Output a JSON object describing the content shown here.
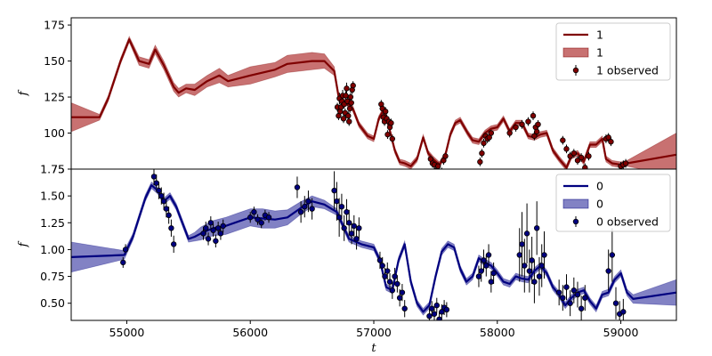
{
  "chart_data": [
    {
      "type": "line",
      "ylabel": "f",
      "xlabel": "",
      "xlim": [
        54550,
        59450
      ],
      "ylim": [
        75,
        180
      ],
      "yticks": [
        75,
        100,
        125,
        150,
        175
      ],
      "line_color": "#7f0000",
      "band_color": "#b03535",
      "legend": {
        "placement": "top-right",
        "entries": [
          "1",
          "1",
          "1 observed"
        ]
      },
      "model": {
        "x": [
          54550,
          54780,
          54850,
          54950,
          55020,
          55100,
          55180,
          55230,
          55300,
          55380,
          55420,
          55480,
          55550,
          55650,
          55750,
          55820,
          56000,
          56200,
          56300,
          56500,
          56600,
          56680,
          56720,
          56780,
          56830,
          56880,
          56950,
          57000,
          57040,
          57080,
          57120,
          57170,
          57210,
          57250,
          57300,
          57350,
          57400,
          57440,
          57480,
          57530,
          57580,
          57620,
          57660,
          57700,
          57760,
          57800,
          57850,
          57900,
          57950,
          58000,
          58050,
          58100,
          58150,
          58200,
          58250,
          58300,
          58350,
          58400,
          58450,
          58500,
          58530,
          58560,
          58600,
          58650,
          58700,
          58750,
          58800,
          58850,
          58880,
          58930,
          59000,
          59050,
          59450
        ],
        "y": [
          111,
          111,
          124,
          150,
          165,
          150,
          148,
          158,
          147,
          132,
          128,
          131,
          130,
          136,
          140,
          136,
          140,
          144,
          148,
          150,
          150,
          143,
          123,
          121,
          117,
          106,
          98,
          96,
          110,
          116,
          105,
          88,
          80,
          79,
          77,
          82,
          97,
          86,
          82,
          78,
          85,
          99,
          107,
          109,
          100,
          95,
          94,
          100,
          103,
          104,
          110,
          101,
          107,
          107,
          98,
          97,
          99,
          100,
          88,
          82,
          79,
          76,
          84,
          86,
          80,
          92,
          92,
          96,
          82,
          79,
          78,
          79,
          85
        ],
        "band": [
          10,
          2,
          2,
          2,
          2,
          3,
          3,
          3,
          3,
          3,
          3,
          3,
          4,
          4,
          5,
          4,
          6,
          5,
          6,
          6,
          5,
          3,
          2,
          2,
          2,
          2,
          2,
          2,
          2,
          2,
          2,
          2,
          2,
          2,
          2,
          2,
          2,
          2,
          2,
          2,
          2,
          2,
          2,
          2,
          2,
          2,
          2,
          2,
          2,
          2,
          2,
          2,
          2,
          2,
          2,
          2,
          2,
          2,
          2,
          2,
          2,
          2,
          2,
          2,
          2,
          2,
          2,
          2,
          2,
          2,
          2,
          2,
          15
        ]
      },
      "observed": {
        "x": [
          56705,
          56715,
          56722,
          56728,
          56735,
          56742,
          56748,
          56755,
          56760,
          56768,
          56773,
          56780,
          56787,
          56793,
          56800,
          56806,
          56812,
          56818,
          56825,
          56832,
          57060,
          57070,
          57078,
          57087,
          57095,
          57105,
          57112,
          57122,
          57130,
          57140,
          57150,
          57460,
          57475,
          57490,
          57505,
          57520,
          57535,
          57550,
          57565,
          57580,
          57860,
          57875,
          57890,
          57905,
          57920,
          57935,
          57950,
          58100,
          58150,
          58200,
          58250,
          58290,
          58300,
          58310,
          58320,
          58330,
          58530,
          58560,
          58590,
          58620,
          58650,
          58680,
          58710,
          58740,
          58880,
          58900,
          58920,
          59000,
          59020,
          59040
        ],
        "y": [
          118,
          112,
          124,
          115,
          118,
          122,
          126,
          110,
          120,
          114,
          126,
          131,
          122,
          112,
          108,
          117,
          125,
          121,
          130,
          133,
          120,
          117,
          111,
          108,
          115,
          110,
          99,
          108,
          104,
          107,
          96,
          82,
          79,
          78,
          74,
          77,
          66,
          73,
          81,
          84,
          80,
          86,
          93,
          98,
          96,
          97,
          100,
          100,
          104,
          106,
          108,
          112,
          98,
          104,
          101,
          106,
          95,
          89,
          84,
          86,
          81,
          83,
          76,
          84,
          96,
          97,
          94,
          77,
          78,
          79
        ],
        "err": [
          3,
          3,
          4,
          3,
          3,
          3,
          4,
          3,
          3,
          3,
          3,
          4,
          3,
          3,
          3,
          3,
          3,
          3,
          3,
          3,
          3,
          3,
          3,
          3,
          3,
          3,
          3,
          3,
          3,
          3,
          3,
          3,
          3,
          3,
          3,
          3,
          3,
          3,
          3,
          3,
          3,
          3,
          3,
          3,
          3,
          3,
          3,
          3,
          3,
          3,
          3,
          3,
          3,
          3,
          3,
          3,
          3,
          3,
          3,
          3,
          3,
          3,
          3,
          3,
          3,
          3,
          3,
          3,
          3,
          3
        ]
      }
    },
    {
      "type": "line",
      "ylabel": "f",
      "xlabel": "t",
      "xlim": [
        54550,
        59450
      ],
      "ylim": [
        0.34,
        1.75
      ],
      "xticks": [
        55000,
        56000,
        57000,
        58000,
        59000
      ],
      "yticks": [
        0.5,
        0.75,
        1.0,
        1.25,
        1.5,
        1.75
      ],
      "ytick_labels": [
        "0.50",
        "0.75",
        "1.00",
        "1.25",
        "1.50",
        "1.75"
      ],
      "line_color": "#00007f",
      "band_color": "#4d4dab",
      "legend": {
        "placement": "top-right",
        "entries": [
          "0",
          "0",
          "0 observed"
        ]
      },
      "model": {
        "x": [
          54550,
          54980,
          55050,
          55100,
          55150,
          55200,
          55250,
          55300,
          55350,
          55400,
          55450,
          55500,
          55550,
          55600,
          55700,
          55800,
          55900,
          56000,
          56100,
          56200,
          56300,
          56400,
          56500,
          56600,
          56700,
          56800,
          56900,
          57000,
          57050,
          57100,
          57150,
          57200,
          57250,
          57300,
          57350,
          57400,
          57450,
          57500,
          57550,
          57600,
          57650,
          57700,
          57750,
          57800,
          57850,
          57900,
          57950,
          58000,
          58050,
          58100,
          58150,
          58200,
          58250,
          58300,
          58350,
          58400,
          58450,
          58500,
          58550,
          58600,
          58650,
          58700,
          58750,
          58800,
          58850,
          58900,
          58950,
          59000,
          59050,
          59100,
          59450
        ],
        "y": [
          0.93,
          0.95,
          1.12,
          1.3,
          1.48,
          1.6,
          1.55,
          1.45,
          1.5,
          1.4,
          1.25,
          1.1,
          1.12,
          1.15,
          1.2,
          1.22,
          1.26,
          1.3,
          1.29,
          1.28,
          1.3,
          1.38,
          1.45,
          1.42,
          1.35,
          1.1,
          1.05,
          1.02,
          0.9,
          0.65,
          0.62,
          0.9,
          1.05,
          0.7,
          0.5,
          0.42,
          0.48,
          0.75,
          0.98,
          1.05,
          1.02,
          0.82,
          0.7,
          0.75,
          0.92,
          0.88,
          0.85,
          0.78,
          0.7,
          0.68,
          0.75,
          0.73,
          0.72,
          0.8,
          0.85,
          0.78,
          0.65,
          0.58,
          0.48,
          0.55,
          0.6,
          0.62,
          0.52,
          0.45,
          0.58,
          0.6,
          0.72,
          0.78,
          0.6,
          0.54,
          0.6
        ],
        "band": [
          0.14,
          0.04,
          0.03,
          0.03,
          0.03,
          0.03,
          0.03,
          0.03,
          0.03,
          0.03,
          0.03,
          0.03,
          0.04,
          0.06,
          0.07,
          0.08,
          0.08,
          0.08,
          0.09,
          0.08,
          0.07,
          0.06,
          0.05,
          0.04,
          0.03,
          0.03,
          0.03,
          0.03,
          0.03,
          0.03,
          0.03,
          0.03,
          0.03,
          0.03,
          0.03,
          0.03,
          0.03,
          0.03,
          0.03,
          0.03,
          0.03,
          0.03,
          0.03,
          0.03,
          0.03,
          0.03,
          0.03,
          0.03,
          0.03,
          0.03,
          0.03,
          0.03,
          0.03,
          0.03,
          0.03,
          0.03,
          0.03,
          0.03,
          0.03,
          0.03,
          0.03,
          0.03,
          0.03,
          0.03,
          0.03,
          0.03,
          0.03,
          0.03,
          0.03,
          0.04,
          0.12
        ]
      },
      "observed": {
        "x": [
          54970,
          54990,
          55220,
          55240,
          55260,
          55280,
          55300,
          55320,
          55340,
          55360,
          55380,
          55620,
          55640,
          55660,
          55680,
          55700,
          55720,
          55740,
          55760,
          55780,
          56000,
          56030,
          56060,
          56090,
          56120,
          56150,
          56380,
          56410,
          56440,
          56470,
          56500,
          56680,
          56700,
          56720,
          56740,
          56760,
          56780,
          56800,
          56820,
          56840,
          56860,
          56880,
          57050,
          57070,
          57090,
          57110,
          57130,
          57150,
          57170,
          57190,
          57210,
          57230,
          57250,
          57450,
          57470,
          57490,
          57510,
          57530,
          57550,
          57570,
          57590,
          57850,
          57870,
          57890,
          57910,
          57930,
          57950,
          57970,
          58180,
          58200,
          58220,
          58240,
          58260,
          58280,
          58300,
          58320,
          58340,
          58360,
          58380,
          58500,
          58530,
          58560,
          58590,
          58620,
          58650,
          58680,
          58710,
          58900,
          58930,
          58960,
          58990,
          59020
        ],
        "y": [
          0.88,
          1.0,
          1.68,
          1.62,
          1.55,
          1.5,
          1.45,
          1.38,
          1.32,
          1.2,
          1.05,
          1.15,
          1.2,
          1.1,
          1.25,
          1.18,
          1.08,
          1.2,
          1.15,
          1.22,
          1.3,
          1.35,
          1.28,
          1.25,
          1.32,
          1.3,
          1.58,
          1.35,
          1.4,
          1.45,
          1.38,
          1.55,
          1.45,
          1.3,
          1.4,
          1.2,
          1.35,
          1.25,
          1.15,
          1.22,
          1.1,
          1.2,
          0.9,
          0.85,
          0.75,
          0.8,
          0.7,
          0.62,
          0.75,
          0.68,
          0.55,
          0.6,
          0.45,
          0.38,
          0.45,
          0.4,
          0.48,
          0.35,
          0.42,
          0.46,
          0.44,
          0.75,
          0.8,
          0.9,
          0.85,
          0.95,
          0.7,
          0.78,
          0.95,
          1.05,
          0.85,
          1.15,
          0.8,
          0.9,
          0.7,
          1.2,
          0.75,
          0.85,
          0.95,
          0.6,
          0.55,
          0.65,
          0.5,
          0.62,
          0.58,
          0.45,
          0.55,
          0.8,
          0.95,
          0.5,
          0.4,
          0.42
        ],
        "err": [
          0.05,
          0.05,
          0.08,
          0.08,
          0.08,
          0.08,
          0.08,
          0.08,
          0.08,
          0.08,
          0.08,
          0.06,
          0.06,
          0.06,
          0.06,
          0.06,
          0.06,
          0.06,
          0.06,
          0.06,
          0.05,
          0.05,
          0.05,
          0.05,
          0.05,
          0.05,
          0.1,
          0.1,
          0.1,
          0.1,
          0.1,
          0.18,
          0.18,
          0.18,
          0.12,
          0.12,
          0.12,
          0.12,
          0.1,
          0.1,
          0.1,
          0.1,
          0.08,
          0.08,
          0.08,
          0.08,
          0.08,
          0.08,
          0.08,
          0.08,
          0.08,
          0.08,
          0.08,
          0.07,
          0.07,
          0.07,
          0.07,
          0.07,
          0.07,
          0.07,
          0.07,
          0.1,
          0.1,
          0.1,
          0.1,
          0.1,
          0.1,
          0.1,
          0.25,
          0.3,
          0.25,
          0.28,
          0.2,
          0.22,
          0.2,
          0.25,
          0.18,
          0.2,
          0.22,
          0.12,
          0.12,
          0.12,
          0.12,
          0.12,
          0.12,
          0.12,
          0.12,
          0.2,
          0.25,
          0.15,
          0.12,
          0.12
        ]
      }
    }
  ]
}
